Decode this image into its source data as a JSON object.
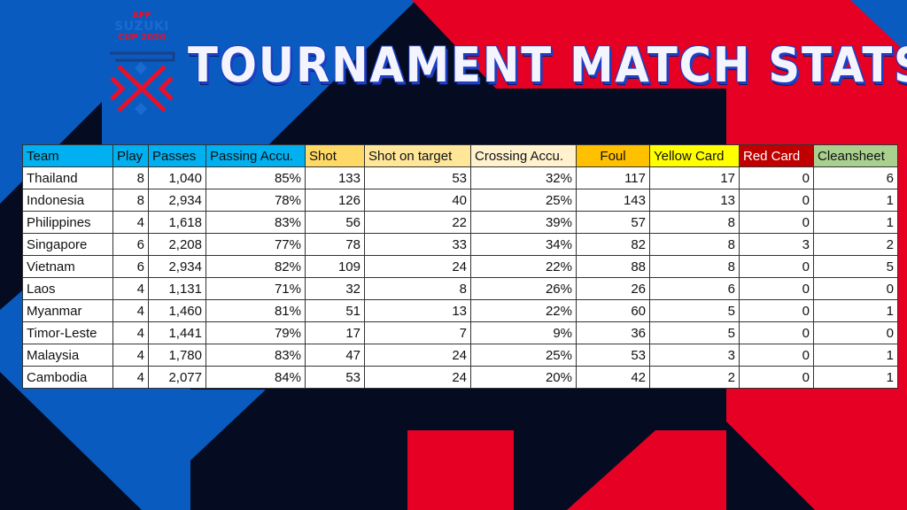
{
  "logo": {
    "line1": "AFF",
    "line2": "SUZUKI",
    "line3": "CUP 2020"
  },
  "title": "TOURNAMENT MATCH STATS",
  "colors": {
    "background": "#050c22",
    "blue": "#0a5bbf",
    "red": "#e60023"
  },
  "chart_data": {
    "type": "table",
    "columns": [
      "Team",
      "Play",
      "Passes",
      "Passing Accu.",
      "Shot",
      "Shot on target",
      "Crossing Accu.",
      "Foul",
      "Yellow Card",
      "Red Card",
      "Cleansheet"
    ],
    "header_colors": [
      "#00b0f0",
      "#00b0f0",
      "#00b0f0",
      "#00b0f0",
      "#ffd966",
      "#ffe699",
      "#fff2cc",
      "#ffc000",
      "#ffff00",
      "#c00000",
      "#a9d08e"
    ],
    "rows": [
      [
        "Thailand",
        "8",
        "1,040",
        "85%",
        "133",
        "53",
        "32%",
        "117",
        "17",
        "0",
        "6"
      ],
      [
        "Indonesia",
        "8",
        "2,934",
        "78%",
        "126",
        "40",
        "25%",
        "143",
        "13",
        "0",
        "1"
      ],
      [
        "Philippines",
        "4",
        "1,618",
        "83%",
        "56",
        "22",
        "39%",
        "57",
        "8",
        "0",
        "1"
      ],
      [
        "Singapore",
        "6",
        "2,208",
        "77%",
        "78",
        "33",
        "34%",
        "82",
        "8",
        "3",
        "2"
      ],
      [
        "Vietnam",
        "6",
        "2,934",
        "82%",
        "109",
        "24",
        "22%",
        "88",
        "8",
        "0",
        "5"
      ],
      [
        "Laos",
        "4",
        "1,131",
        "71%",
        "32",
        "8",
        "26%",
        "26",
        "6",
        "0",
        "0"
      ],
      [
        "Myanmar",
        "4",
        "1,460",
        "81%",
        "51",
        "13",
        "22%",
        "60",
        "5",
        "0",
        "1"
      ],
      [
        "Timor-Leste",
        "4",
        "1,441",
        "79%",
        "17",
        "7",
        "9%",
        "36",
        "5",
        "0",
        "0"
      ],
      [
        "Malaysia",
        "4",
        "1,780",
        "83%",
        "47",
        "24",
        "25%",
        "53",
        "3",
        "0",
        "1"
      ],
      [
        "Cambodia",
        "4",
        "2,077",
        "84%",
        "53",
        "24",
        "20%",
        "42",
        "2",
        "0",
        "1"
      ]
    ]
  }
}
